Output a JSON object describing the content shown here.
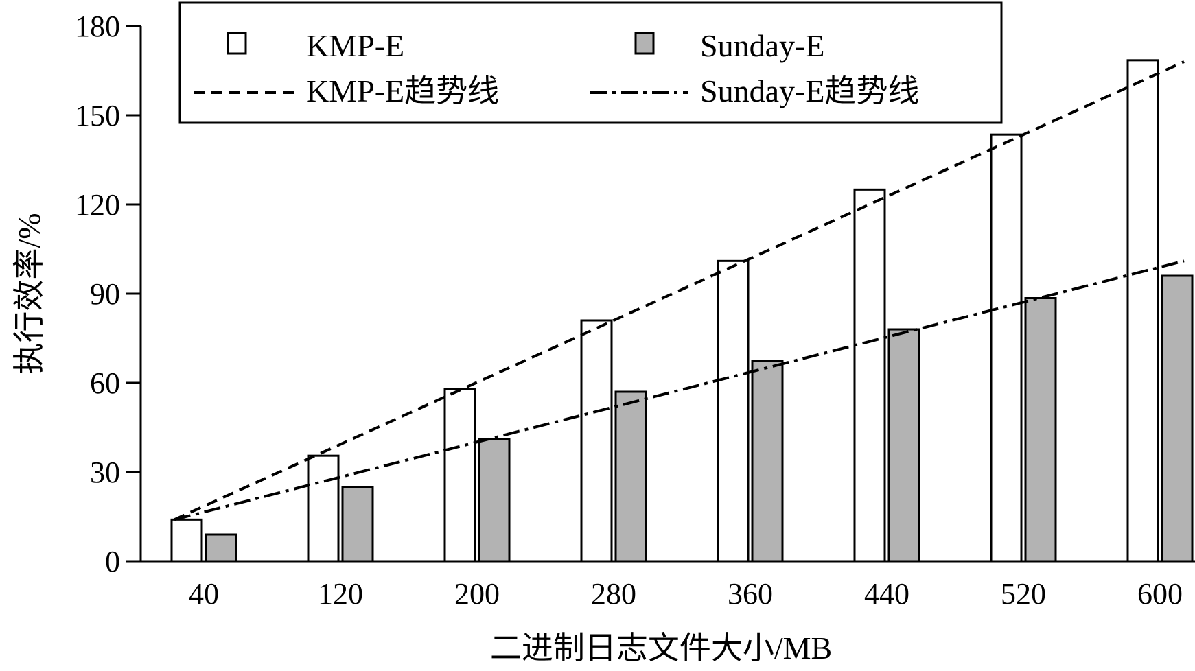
{
  "chart_data": {
    "type": "bar",
    "title": "",
    "xlabel": "二进制日志文件大小/MB",
    "ylabel": "执行效率/%",
    "categories": [
      "40",
      "120",
      "200",
      "280",
      "360",
      "440",
      "520",
      "600"
    ],
    "ylim": [
      0,
      180
    ],
    "yticks": [
      "0",
      "30",
      "60",
      "90",
      "120",
      "150",
      "180"
    ],
    "grid": false,
    "legend_position": "top",
    "series": [
      {
        "name": "KMP-E",
        "values": [
          14,
          35.5,
          58,
          81,
          101,
          125,
          143.5,
          168.5
        ],
        "fill": "#ffffff"
      },
      {
        "name": "Sunday-E",
        "values": [
          9,
          25,
          41,
          57,
          67.5,
          78,
          88.5,
          96
        ],
        "fill": "#b3b3b3"
      }
    ],
    "trendlines": [
      {
        "name": "KMP-E趋势线",
        "style": "dashed",
        "start": 14,
        "end": 168
      },
      {
        "name": "Sunday-E趋势线",
        "style": "dash-dot",
        "start": 14,
        "end": 101
      }
    ]
  }
}
